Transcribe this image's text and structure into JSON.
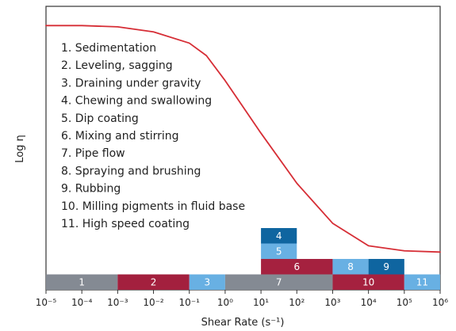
{
  "chart_data": {
    "type": "line",
    "xlabel": "Shear Rate (s⁻¹)",
    "ylabel": "Log η",
    "x_scale": "log",
    "xlim": [
      1e-05,
      1000000.0
    ],
    "x_ticks": [
      {
        "value": 1e-05,
        "label": "10⁻⁵"
      },
      {
        "value": 0.0001,
        "label": "10⁻⁴"
      },
      {
        "value": 0.001,
        "label": "10⁻³"
      },
      {
        "value": 0.01,
        "label": "10⁻²"
      },
      {
        "value": 0.1,
        "label": "10⁻¹"
      },
      {
        "value": 1,
        "label": "10⁰"
      },
      {
        "value": 10,
        "label": "10¹"
      },
      {
        "value": 100,
        "label": "10²"
      },
      {
        "value": 1000,
        "label": "10³"
      },
      {
        "value": 10000,
        "label": "10⁴"
      },
      {
        "value": 100000,
        "label": "10⁵"
      },
      {
        "value": 1000000,
        "label": "10⁶"
      }
    ],
    "y_axis_numeric_labels": false,
    "grid": false,
    "legend_items": [
      "1. Sedimentation",
      "2. Leveling, sagging",
      "3. Draining under gravity",
      "4. Chewing and swallowing",
      "5. Dip coating",
      "6. Mixing and stirring",
      "7. Pipe flow",
      "8. Spraying and brushing",
      "9. Rubbing",
      "10. Milling pigments in fluid base",
      "11. High speed coating"
    ],
    "series": [
      {
        "color": "#d62d35",
        "points": [
          [
            1e-05,
            0.98
          ],
          [
            0.0001,
            0.98
          ],
          [
            0.001,
            0.975
          ],
          [
            0.01,
            0.955
          ],
          [
            0.1,
            0.91
          ],
          [
            0.3,
            0.86
          ],
          [
            1,
            0.76
          ],
          [
            10,
            0.55
          ],
          [
            100,
            0.35
          ],
          [
            1000,
            0.19
          ],
          [
            10000,
            0.1
          ],
          [
            100000,
            0.08
          ],
          [
            1000000,
            0.075
          ]
        ]
      }
    ],
    "ranges": [
      {
        "label": "1",
        "x_start": 1e-05,
        "x_end": 0.001,
        "row": 0,
        "color": "#848a93"
      },
      {
        "label": "2",
        "x_start": 0.001,
        "x_end": 0.1,
        "row": 0,
        "color": "#a3203e"
      },
      {
        "label": "3",
        "x_start": 0.1,
        "x_end": 1,
        "row": 0,
        "color": "#68b0e3"
      },
      {
        "label": "7",
        "x_start": 1,
        "x_end": 1000,
        "row": 0,
        "color": "#848a93"
      },
      {
        "label": "10",
        "x_start": 1000,
        "x_end": 100000,
        "row": 0,
        "color": "#a5213f"
      },
      {
        "label": "11",
        "x_start": 100000,
        "x_end": 1000000,
        "row": 0,
        "color": "#68b0e3"
      },
      {
        "label": "6",
        "x_start": 10,
        "x_end": 1000,
        "row": 1,
        "color": "#a5213f"
      },
      {
        "label": "8",
        "x_start": 1000,
        "x_end": 10000,
        "row": 1,
        "color": "#68b0e3"
      },
      {
        "label": "9",
        "x_start": 10000,
        "x_end": 100000,
        "row": 1,
        "color": "#0f65a0"
      },
      {
        "label": "5",
        "x_start": 10,
        "x_end": 100,
        "row": 2,
        "color": "#68b0e3"
      },
      {
        "label": "4",
        "x_start": 10,
        "x_end": 100,
        "row": 3,
        "color": "#0f65a0"
      }
    ]
  }
}
